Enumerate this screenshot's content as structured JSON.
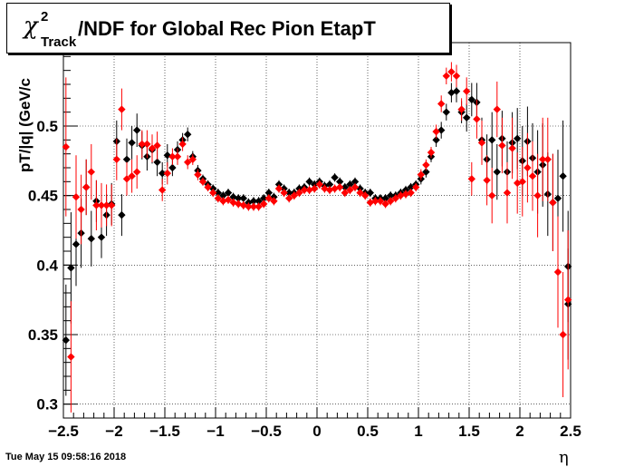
{
  "header": {
    "title_symbol": "χ",
    "title_sup": "2",
    "title_sub": "Track",
    "title_text": "/NDF for Global Rec Pion EtapT"
  },
  "footer": {
    "timestamp": "Tue May 15 09:58:16 2018"
  },
  "chart_data": {
    "type": "scatter",
    "title": "χ2 Track /NDF for Global Rec Pion EtapT",
    "xlabel": "η",
    "ylabel": "pT/|q| (GeV/c",
    "xlim": [
      -2.5,
      2.5
    ],
    "ylim": [
      0.29,
      0.56
    ],
    "x_ticks": [
      "−2.5",
      "−2",
      "−1.5",
      "−1",
      "−0.5",
      "0",
      "0.5",
      "1",
      "1.5",
      "2",
      "2.5"
    ],
    "y_ticks": [
      "0.3",
      "0.35",
      "0.4",
      "0.45",
      "0.5"
    ],
    "grid": true,
    "colors": {
      "series_a": "#000000",
      "series_b": "#ff0000"
    },
    "series": [
      {
        "color": "#000000",
        "points": [
          [
            -2.475,
            0.346,
            0.04
          ],
          [
            -2.425,
            0.398,
            0.04
          ],
          [
            -2.375,
            0.415,
            0.03
          ],
          [
            -2.325,
            0.423,
            0.025
          ],
          [
            -2.275,
            0.456,
            0.02
          ],
          [
            -2.225,
            0.419,
            0.02
          ],
          [
            -2.175,
            0.446,
            0.015
          ],
          [
            -2.125,
            0.42,
            0.015
          ],
          [
            -2.075,
            0.436,
            0.015
          ],
          [
            -2.025,
            0.444,
            0.015
          ],
          [
            -1.975,
            0.489,
            0.015
          ],
          [
            -1.925,
            0.436,
            0.015
          ],
          [
            -1.875,
            0.476,
            0.015
          ],
          [
            -1.825,
            0.488,
            0.012
          ],
          [
            -1.775,
            0.497,
            0.012
          ],
          [
            -1.725,
            0.486,
            0.01
          ],
          [
            -1.675,
            0.478,
            0.01
          ],
          [
            -1.625,
            0.483,
            0.01
          ],
          [
            -1.575,
            0.474,
            0.01
          ],
          [
            -1.525,
            0.466,
            0.008
          ],
          [
            -1.475,
            0.479,
            0.008
          ],
          [
            -1.425,
            0.47,
            0.006
          ],
          [
            -1.375,
            0.483,
            0.006
          ],
          [
            -1.325,
            0.49,
            0.005
          ],
          [
            -1.275,
            0.494,
            0.005
          ],
          [
            -1.225,
            0.478,
            0.004
          ],
          [
            -1.175,
            0.468,
            0.004
          ],
          [
            -1.125,
            0.462,
            0.003
          ],
          [
            -1.075,
            0.458,
            0.003
          ],
          [
            -1.025,
            0.455,
            0.003
          ],
          [
            -0.975,
            0.452,
            0.003
          ],
          [
            -0.925,
            0.45,
            0.003
          ],
          [
            -0.875,
            0.452,
            0.003
          ],
          [
            -0.825,
            0.449,
            0.003
          ],
          [
            -0.775,
            0.448,
            0.003
          ],
          [
            -0.725,
            0.448,
            0.003
          ],
          [
            -0.675,
            0.445,
            0.003
          ],
          [
            -0.625,
            0.446,
            0.003
          ],
          [
            -0.575,
            0.446,
            0.003
          ],
          [
            -0.525,
            0.448,
            0.003
          ],
          [
            -0.475,
            0.452,
            0.003
          ],
          [
            -0.425,
            0.449,
            0.003
          ],
          [
            -0.375,
            0.458,
            0.003
          ],
          [
            -0.325,
            0.455,
            0.003
          ],
          [
            -0.275,
            0.452,
            0.003
          ],
          [
            -0.225,
            0.452,
            0.003
          ],
          [
            -0.175,
            0.455,
            0.003
          ],
          [
            -0.125,
            0.456,
            0.003
          ],
          [
            -0.075,
            0.46,
            0.003
          ],
          [
            -0.025,
            0.458,
            0.003
          ],
          [
            0.025,
            0.46,
            0.003
          ],
          [
            0.075,
            0.457,
            0.003
          ],
          [
            0.125,
            0.458,
            0.003
          ],
          [
            0.175,
            0.463,
            0.003
          ],
          [
            0.225,
            0.46,
            0.003
          ],
          [
            0.275,
            0.456,
            0.003
          ],
          [
            0.325,
            0.458,
            0.003
          ],
          [
            0.375,
            0.46,
            0.003
          ],
          [
            0.425,
            0.455,
            0.003
          ],
          [
            0.475,
            0.452,
            0.003
          ],
          [
            0.525,
            0.452,
            0.003
          ],
          [
            0.575,
            0.448,
            0.003
          ],
          [
            0.625,
            0.448,
            0.003
          ],
          [
            0.675,
            0.448,
            0.003
          ],
          [
            0.725,
            0.45,
            0.003
          ],
          [
            0.775,
            0.45,
            0.003
          ],
          [
            0.825,
            0.452,
            0.003
          ],
          [
            0.875,
            0.454,
            0.003
          ],
          [
            0.925,
            0.456,
            0.003
          ],
          [
            0.975,
            0.458,
            0.003
          ],
          [
            1.025,
            0.462,
            0.004
          ],
          [
            1.075,
            0.467,
            0.004
          ],
          [
            1.125,
            0.478,
            0.004
          ],
          [
            1.175,
            0.49,
            0.005
          ],
          [
            1.225,
            0.497,
            0.006
          ],
          [
            1.275,
            0.51,
            0.006
          ],
          [
            1.325,
            0.524,
            0.007
          ],
          [
            1.375,
            0.525,
            0.008
          ],
          [
            1.425,
            0.51,
            0.008
          ],
          [
            1.475,
            0.506,
            0.01
          ],
          [
            1.525,
            0.519,
            0.012
          ],
          [
            1.575,
            0.517,
            0.014
          ],
          [
            1.625,
            0.49,
            0.016
          ],
          [
            1.675,
            0.476,
            0.018
          ],
          [
            1.725,
            0.49,
            0.02
          ],
          [
            1.775,
            0.467,
            0.02
          ],
          [
            1.825,
            0.491,
            0.02
          ],
          [
            1.875,
            0.467,
            0.022
          ],
          [
            1.925,
            0.488,
            0.022
          ],
          [
            1.975,
            0.491,
            0.022
          ],
          [
            2.025,
            0.475,
            0.025
          ],
          [
            2.075,
            0.489,
            0.025
          ],
          [
            2.125,
            0.477,
            0.025
          ],
          [
            2.175,
            0.467,
            0.03
          ],
          [
            2.225,
            0.472,
            0.03
          ],
          [
            2.275,
            0.451,
            0.03
          ],
          [
            2.325,
            0.445,
            0.035
          ],
          [
            2.375,
            0.448,
            0.035
          ],
          [
            2.425,
            0.464,
            0.04
          ],
          [
            2.475,
            0.372,
            0.04
          ],
          [
            2.475,
            0.399,
            0.04
          ]
        ]
      },
      {
        "color": "#ff0000",
        "points": [
          [
            -2.475,
            0.485,
            0.05
          ],
          [
            -2.425,
            0.334,
            0.04
          ],
          [
            -2.375,
            0.449,
            0.03
          ],
          [
            -2.325,
            0.44,
            0.025
          ],
          [
            -2.275,
            0.456,
            0.02
          ],
          [
            -2.225,
            0.467,
            0.02
          ],
          [
            -2.175,
            0.443,
            0.018
          ],
          [
            -2.125,
            0.443,
            0.016
          ],
          [
            -2.075,
            0.443,
            0.015
          ],
          [
            -2.025,
            0.443,
            0.015
          ],
          [
            -1.975,
            0.476,
            0.015
          ],
          [
            -1.925,
            0.512,
            0.015
          ],
          [
            -1.875,
            0.462,
            0.012
          ],
          [
            -1.825,
            0.464,
            0.012
          ],
          [
            -1.775,
            0.467,
            0.012
          ],
          [
            -1.725,
            0.487,
            0.01
          ],
          [
            -1.675,
            0.487,
            0.01
          ],
          [
            -1.625,
            0.484,
            0.01
          ],
          [
            -1.575,
            0.486,
            0.01
          ],
          [
            -1.525,
            0.454,
            0.008
          ],
          [
            -1.475,
            0.466,
            0.008
          ],
          [
            -1.425,
            0.478,
            0.006
          ],
          [
            -1.375,
            0.478,
            0.006
          ],
          [
            -1.325,
            0.487,
            0.005
          ],
          [
            -1.275,
            0.474,
            0.005
          ],
          [
            -1.225,
            0.476,
            0.004
          ],
          [
            -1.175,
            0.465,
            0.004
          ],
          [
            -1.125,
            0.46,
            0.003
          ],
          [
            -1.075,
            0.456,
            0.003
          ],
          [
            -1.025,
            0.452,
            0.003
          ],
          [
            -0.975,
            0.448,
            0.003
          ],
          [
            -0.925,
            0.446,
            0.003
          ],
          [
            -0.875,
            0.447,
            0.003
          ],
          [
            -0.825,
            0.445,
            0.003
          ],
          [
            -0.775,
            0.444,
            0.003
          ],
          [
            -0.725,
            0.443,
            0.003
          ],
          [
            -0.675,
            0.442,
            0.003
          ],
          [
            -0.625,
            0.442,
            0.003
          ],
          [
            -0.575,
            0.442,
            0.003
          ],
          [
            -0.525,
            0.444,
            0.003
          ],
          [
            -0.475,
            0.448,
            0.003
          ],
          [
            -0.425,
            0.446,
            0.003
          ],
          [
            -0.375,
            0.455,
            0.003
          ],
          [
            -0.325,
            0.452,
            0.003
          ],
          [
            -0.275,
            0.448,
            0.003
          ],
          [
            -0.225,
            0.45,
            0.003
          ],
          [
            -0.175,
            0.452,
            0.003
          ],
          [
            -0.125,
            0.454,
            0.003
          ],
          [
            -0.075,
            0.454,
            0.003
          ],
          [
            -0.025,
            0.455,
            0.003
          ],
          [
            0.025,
            0.458,
            0.003
          ],
          [
            0.075,
            0.455,
            0.003
          ],
          [
            0.125,
            0.454,
            0.003
          ],
          [
            0.175,
            0.455,
            0.003
          ],
          [
            0.225,
            0.456,
            0.003
          ],
          [
            0.275,
            0.452,
            0.003
          ],
          [
            0.325,
            0.454,
            0.003
          ],
          [
            0.375,
            0.456,
            0.003
          ],
          [
            0.425,
            0.452,
            0.003
          ],
          [
            0.475,
            0.45,
            0.003
          ],
          [
            0.525,
            0.445,
            0.003
          ],
          [
            0.575,
            0.446,
            0.003
          ],
          [
            0.625,
            0.446,
            0.003
          ],
          [
            0.675,
            0.444,
            0.003
          ],
          [
            0.725,
            0.446,
            0.003
          ],
          [
            0.775,
            0.448,
            0.003
          ],
          [
            0.825,
            0.45,
            0.003
          ],
          [
            0.875,
            0.451,
            0.003
          ],
          [
            0.925,
            0.452,
            0.003
          ],
          [
            0.975,
            0.456,
            0.003
          ],
          [
            1.025,
            0.465,
            0.004
          ],
          [
            1.075,
            0.472,
            0.004
          ],
          [
            1.125,
            0.481,
            0.004
          ],
          [
            1.175,
            0.496,
            0.005
          ],
          [
            1.225,
            0.516,
            0.006
          ],
          [
            1.275,
            0.536,
            0.006
          ],
          [
            1.325,
            0.539,
            0.007
          ],
          [
            1.375,
            0.536,
            0.008
          ],
          [
            1.425,
            0.512,
            0.008
          ],
          [
            1.475,
            0.525,
            0.01
          ],
          [
            1.525,
            0.462,
            0.012
          ],
          [
            1.575,
            0.505,
            0.014
          ],
          [
            1.625,
            0.488,
            0.016
          ],
          [
            1.675,
            0.461,
            0.018
          ],
          [
            1.725,
            0.45,
            0.02
          ],
          [
            1.775,
            0.512,
            0.02
          ],
          [
            1.825,
            0.486,
            0.02
          ],
          [
            1.875,
            0.452,
            0.022
          ],
          [
            1.925,
            0.484,
            0.022
          ],
          [
            1.975,
            0.459,
            0.022
          ],
          [
            2.025,
            0.46,
            0.025
          ],
          [
            2.075,
            0.47,
            0.025
          ],
          [
            2.125,
            0.464,
            0.025
          ],
          [
            2.175,
            0.45,
            0.03
          ],
          [
            2.225,
            0.476,
            0.03
          ],
          [
            2.275,
            0.476,
            0.03
          ],
          [
            2.325,
            0.445,
            0.035
          ],
          [
            2.375,
            0.395,
            0.04
          ],
          [
            2.425,
            0.35,
            0.045
          ],
          [
            2.475,
            0.375,
            0.05
          ]
        ]
      }
    ]
  }
}
